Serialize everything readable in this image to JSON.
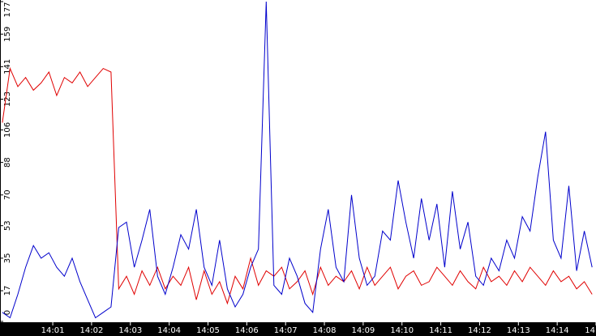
{
  "chart_data": {
    "type": "line",
    "x": [
      839.7,
      839.9,
      840.1,
      840.3,
      840.5,
      840.7,
      840.9,
      841.1,
      841.3,
      841.5,
      841.7,
      841.9,
      842.1,
      842.3,
      842.5,
      842.7,
      842.9,
      843.1,
      843.3,
      843.5,
      843.7,
      843.9,
      844.1,
      844.3,
      844.5,
      844.7,
      844.9,
      845.1,
      845.3,
      845.5,
      845.7,
      845.9,
      846.1,
      846.3,
      846.5,
      846.7,
      846.9,
      847.1,
      847.3,
      847.5,
      847.7,
      847.9,
      848.1,
      848.3,
      848.5,
      848.7,
      848.9,
      849.1,
      849.3,
      849.5,
      849.7,
      849.9,
      850.1,
      850.3,
      850.5,
      850.7,
      850.9,
      851.1,
      851.3,
      851.5,
      851.7,
      851.9,
      852.1,
      852.3,
      852.5,
      852.7,
      852.9,
      853.1,
      853.3,
      853.5,
      853.7,
      853.9,
      854.1,
      854.3,
      854.5,
      854.7,
      854.9
    ],
    "series": [
      {
        "color": "#e00000",
        "values": [
          110,
          140,
          130,
          135,
          128,
          132,
          138,
          125,
          135,
          132,
          138,
          130,
          135,
          140,
          138,
          18,
          25,
          15,
          28,
          20,
          30,
          18,
          25,
          20,
          30,
          12,
          28,
          15,
          22,
          10,
          25,
          18,
          35,
          20,
          28,
          25,
          30,
          18,
          22,
          28,
          15,
          30,
          20,
          25,
          22,
          28,
          18,
          30,
          20,
          25,
          30,
          18,
          25,
          28,
          20,
          22,
          30,
          25,
          20,
          28,
          22,
          18,
          30,
          22,
          25,
          20,
          28,
          22,
          30,
          25,
          20,
          28,
          22,
          25,
          18,
          22,
          15
        ]
      },
      {
        "color": "#0000cc",
        "values": [
          5,
          2,
          15,
          30,
          42,
          35,
          38,
          30,
          25,
          35,
          22,
          12,
          2,
          5,
          8,
          52,
          55,
          30,
          45,
          62,
          25,
          15,
          30,
          48,
          40,
          62,
          30,
          20,
          45,
          18,
          8,
          15,
          30,
          40,
          177,
          20,
          15,
          35,
          25,
          10,
          5,
          40,
          62,
          30,
          22,
          70,
          35,
          20,
          25,
          50,
          45,
          78,
          55,
          35,
          68,
          45,
          65,
          30,
          72,
          40,
          55,
          25,
          20,
          35,
          28,
          45,
          35,
          58,
          50,
          80,
          105,
          45,
          35,
          75,
          28,
          50,
          30
        ]
      }
    ],
    "xlim": [
      839.64,
      855
    ],
    "xticks": [
      {
        "value": 841,
        "label": "14:01"
      },
      {
        "value": 842,
        "label": "14:02"
      },
      {
        "value": 843,
        "label": "14:03"
      },
      {
        "value": 844,
        "label": "14:04"
      },
      {
        "value": 845,
        "label": "14:05"
      },
      {
        "value": 846,
        "label": "14:06"
      },
      {
        "value": 847,
        "label": "14:07"
      },
      {
        "value": 848,
        "label": "14:08"
      },
      {
        "value": 849,
        "label": "14:09"
      },
      {
        "value": 850,
        "label": "14:10"
      },
      {
        "value": 851,
        "label": "14:11"
      },
      {
        "value": 852,
        "label": "14:12"
      },
      {
        "value": 853,
        "label": "14:13"
      },
      {
        "value": 854,
        "label": "14:14"
      },
      {
        "value": 855,
        "label": "14"
      }
    ],
    "ylim": [
      0,
      177
    ],
    "yticks": [
      0,
      17,
      35,
      53,
      70,
      88,
      106,
      123,
      141,
      159,
      177
    ]
  }
}
